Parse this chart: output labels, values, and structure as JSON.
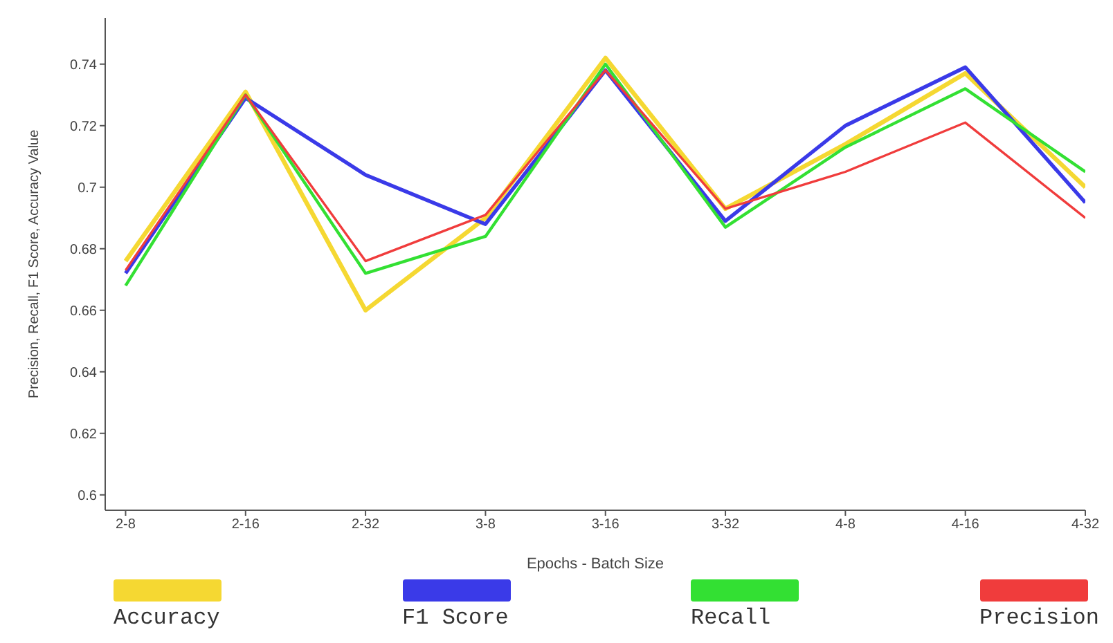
{
  "chart_data": {
    "type": "line",
    "xlabel": "Epochs - Batch Size",
    "ylabel": "Precision, Recall, F1 Score, Accuracy Value",
    "categories": [
      "2-8",
      "2-16",
      "2-32",
      "3-8",
      "3-16",
      "3-32",
      "4-8",
      "4-16",
      "4-32"
    ],
    "series": [
      {
        "name": "Accuracy",
        "color": "#f5d832",
        "values": [
          0.676,
          0.731,
          0.66,
          0.69,
          0.742,
          0.693,
          0.714,
          0.737,
          0.7
        ]
      },
      {
        "name": "F1 Score",
        "color": "#3a3ae8",
        "values": [
          0.672,
          0.729,
          0.704,
          0.688,
          0.738,
          0.689,
          0.72,
          0.739,
          0.695
        ]
      },
      {
        "name": "Recall",
        "color": "#33e033",
        "values": [
          0.668,
          0.73,
          0.672,
          0.684,
          0.74,
          0.687,
          0.713,
          0.732,
          0.705
        ]
      },
      {
        "name": "Precision",
        "color": "#f03c3c",
        "values": [
          0.673,
          0.73,
          0.676,
          0.691,
          0.738,
          0.693,
          0.705,
          0.721,
          0.69
        ]
      }
    ],
    "ylim": [
      0.595,
      0.755
    ],
    "yticks": [
      0.6,
      0.62,
      0.64,
      0.66,
      0.68,
      0.7,
      0.72,
      0.74
    ],
    "grid": false,
    "legend": "bottom",
    "marker": "none",
    "line_style": "solid"
  }
}
